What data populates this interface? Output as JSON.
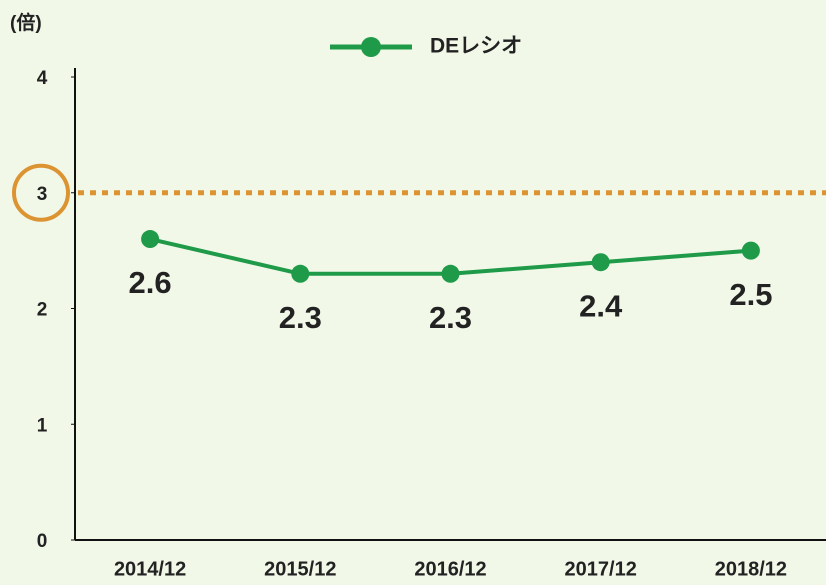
{
  "chart_data": {
    "type": "line",
    "y_axis_label": "(倍)",
    "categories": [
      "2014/12",
      "2015/12",
      "2016/12",
      "2017/12",
      "2018/12"
    ],
    "series": [
      {
        "name": "DEレシオ",
        "color": "#1e9a48",
        "values": [
          2.6,
          2.3,
          2.3,
          2.4,
          2.5
        ]
      }
    ],
    "ylim": [
      0,
      4
    ],
    "yticks": [
      0,
      1,
      2,
      3,
      4
    ],
    "reference_line": {
      "value": 3,
      "color": "#dc9432"
    },
    "legend": "top"
  }
}
